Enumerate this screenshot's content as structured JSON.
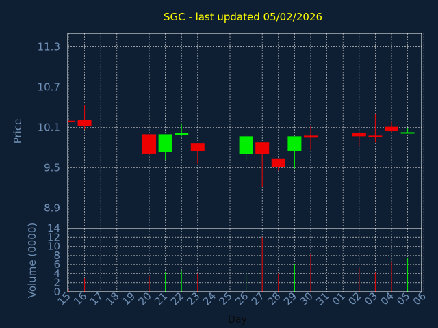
{
  "colors": {
    "background": "#0f1f33",
    "title": "#ffff00",
    "axis_text": "#6f8fb5",
    "grid": "#c8c8c8",
    "frame": "#ffffff",
    "up": "#00ee00",
    "down": "#ee0000"
  },
  "chart_data": {
    "type": "candlestick",
    "title": "SGC - last updated 05/02/2026",
    "xlabel": "Day",
    "ylabel": "Price",
    "volume_label": "Volume (0000)",
    "grid": true,
    "x_ticks": [
      "15",
      "16",
      "17",
      "18",
      "19",
      "20",
      "21",
      "22",
      "23",
      "24",
      "25",
      "26",
      "27",
      "28",
      "29",
      "30",
      "31",
      "01",
      "02",
      "03",
      "04",
      "05",
      "06"
    ],
    "price_ylim": [
      8.6,
      11.5
    ],
    "price_ticks": [
      "8.9",
      "9.5",
      "10.1",
      "10.7",
      "11.3"
    ],
    "price_tick_values": [
      8.9,
      9.5,
      10.1,
      10.7,
      11.3
    ],
    "volume_ylim": [
      0,
      14
    ],
    "volume_ticks": [
      "0",
      "2",
      "4",
      "6",
      "8",
      "10",
      "12",
      "14"
    ],
    "volume_tick_values": [
      0,
      2,
      4,
      6,
      8,
      10,
      12,
      14
    ],
    "candles": [
      {
        "day": "15",
        "open": 10.2,
        "close": 10.18,
        "high": 10.21,
        "low": 10.17,
        "volume": 0.5
      },
      {
        "day": "16",
        "open": 10.21,
        "close": 10.12,
        "high": 10.44,
        "low": 10.07,
        "volume": 3.0
      },
      {
        "day": "20",
        "open": 10.0,
        "close": 9.71,
        "high": 10.0,
        "low": 9.69,
        "volume": 3.5
      },
      {
        "day": "21",
        "open": 9.73,
        "close": 10.0,
        "high": 10.0,
        "low": 9.62,
        "volume": 4.3
      },
      {
        "day": "22",
        "open": 9.99,
        "close": 10.02,
        "high": 10.16,
        "low": 9.97,
        "volume": 4.5
      },
      {
        "day": "23",
        "open": 9.86,
        "close": 9.75,
        "high": 9.86,
        "low": 9.56,
        "volume": 4.0
      },
      {
        "day": "26",
        "open": 9.7,
        "close": 9.97,
        "high": 9.99,
        "low": 9.61,
        "volume": 4.0
      },
      {
        "day": "27",
        "open": 9.88,
        "close": 9.7,
        "high": 9.88,
        "low": 9.22,
        "volume": 12.0
      },
      {
        "day": "28",
        "open": 9.64,
        "close": 9.51,
        "high": 9.64,
        "low": 9.46,
        "volume": 4.0
      },
      {
        "day": "29",
        "open": 9.75,
        "close": 9.97,
        "high": 9.97,
        "low": 9.49,
        "volume": 6.0
      },
      {
        "day": "30",
        "open": 9.98,
        "close": 9.95,
        "high": 10.12,
        "low": 9.77,
        "volume": 8.3
      },
      {
        "day": "02",
        "open": 10.02,
        "close": 9.97,
        "high": 10.03,
        "low": 9.82,
        "volume": 5.3
      },
      {
        "day": "03",
        "open": 9.98,
        "close": 9.96,
        "high": 10.3,
        "low": 9.88,
        "volume": 4.3
      },
      {
        "day": "04",
        "open": 10.11,
        "close": 10.05,
        "high": 10.19,
        "low": 10.03,
        "volume": 6.5
      },
      {
        "day": "05",
        "open": 10.02,
        "close": 10.03,
        "high": 10.09,
        "low": 10.01,
        "volume": 7.5
      }
    ]
  }
}
